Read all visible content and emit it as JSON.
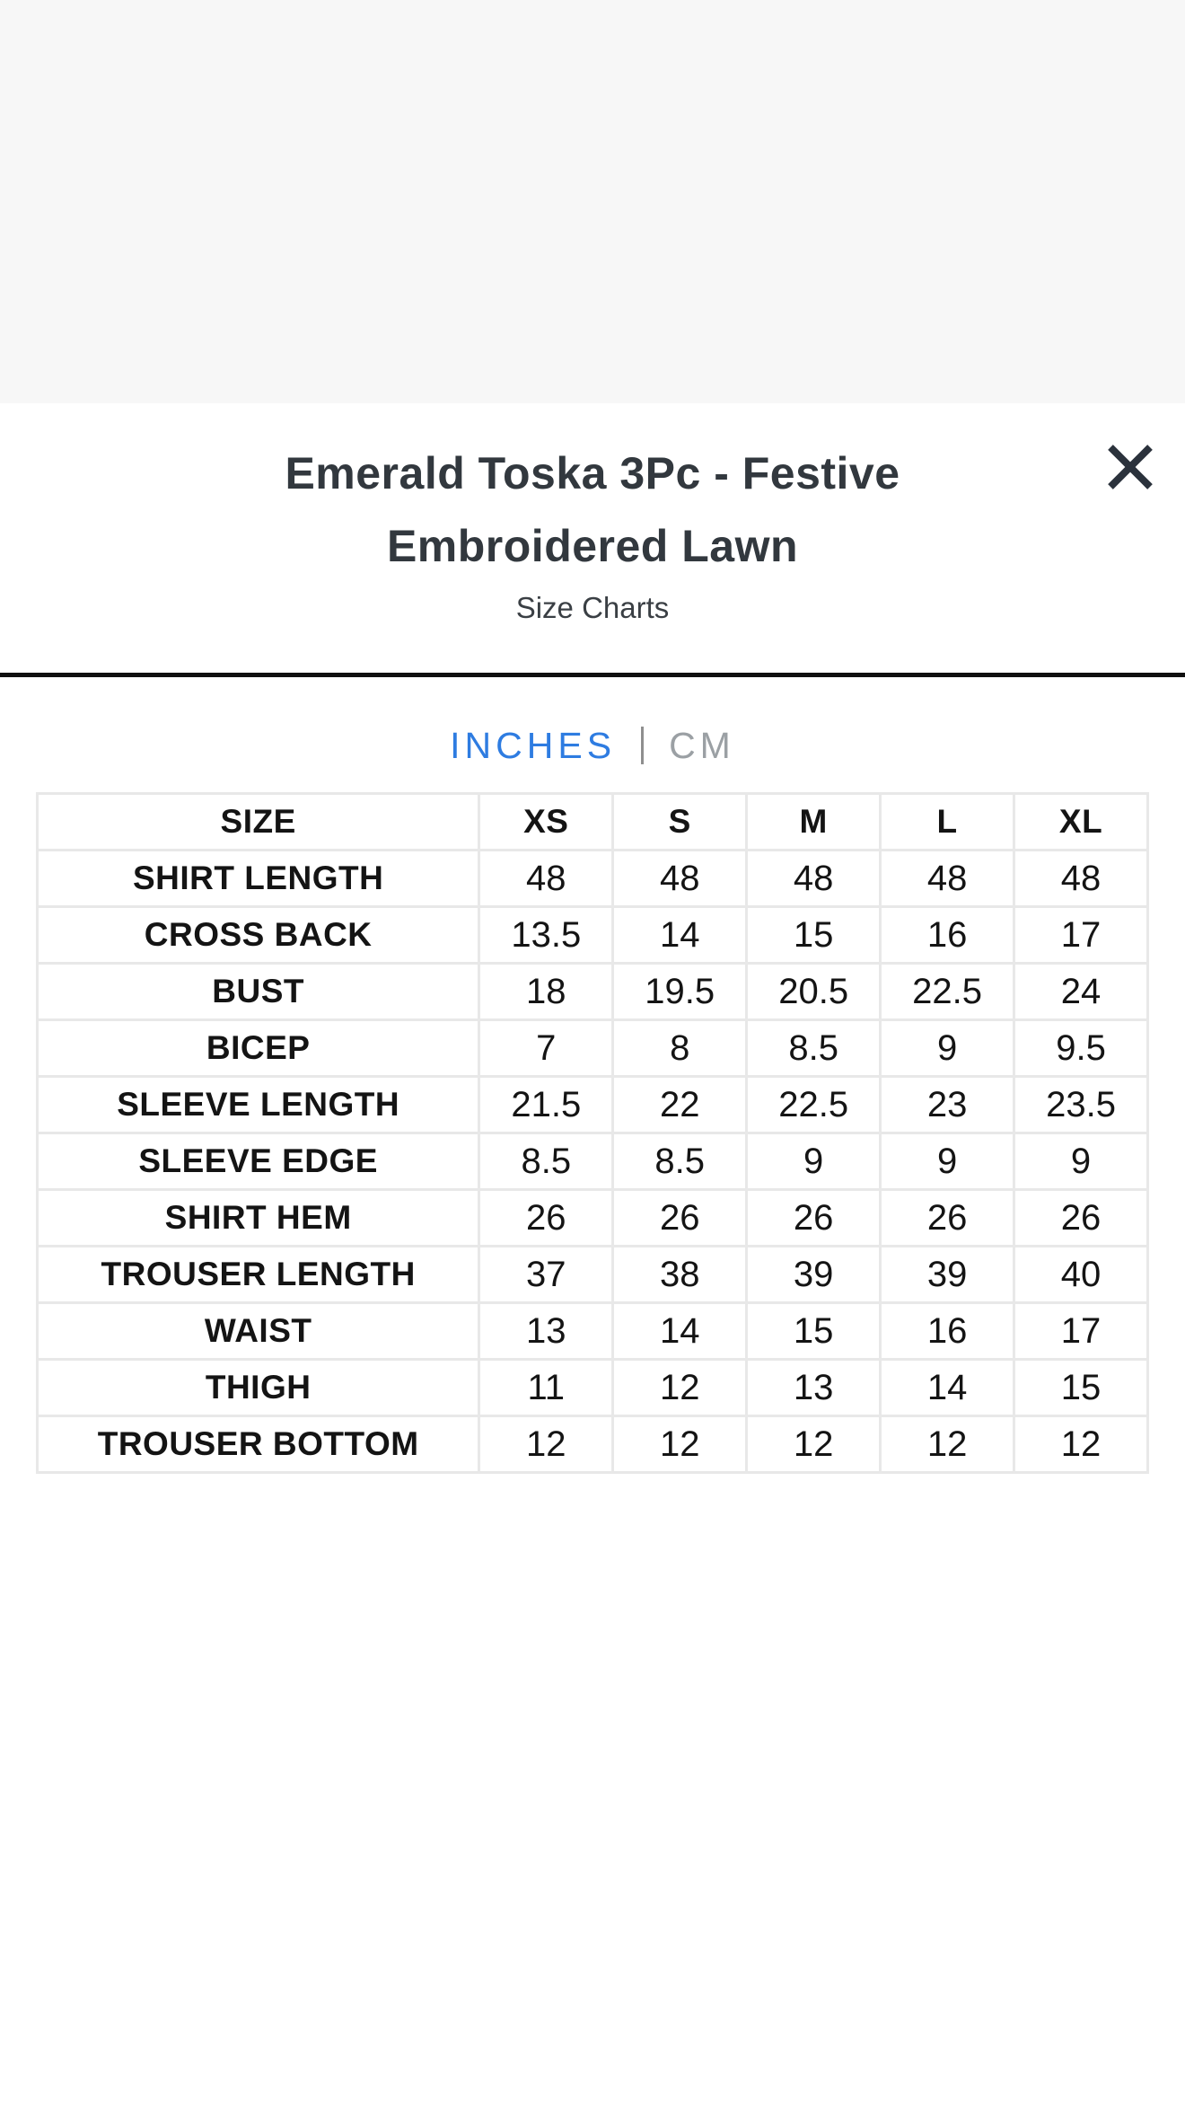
{
  "modal": {
    "title": "Emerald Toska 3Pc - Festive Embroidered Lawn",
    "subtitle": "Size Charts"
  },
  "tabs": {
    "inches_label": "INCHES",
    "cm_label": "CM",
    "active": "INCHES"
  },
  "colors": {
    "accent_blue": "#2E7CE1",
    "inactive_gray": "#9BA0A4",
    "text_dark": "#32383E",
    "icon_dark": "#2B323C",
    "table_border": "#E8E8E8",
    "backdrop": "#F7F7F7",
    "divider": "#101010"
  },
  "icons": {
    "close": "close-icon"
  },
  "size_chart": {
    "type": "table",
    "unit": "inches",
    "columns": [
      "SIZE",
      "XS",
      "S",
      "M",
      "L",
      "XL"
    ],
    "rows": [
      {
        "label": "SHIRT LENGTH",
        "values": [
          "48",
          "48",
          "48",
          "48",
          "48"
        ]
      },
      {
        "label": "CROSS BACK",
        "values": [
          "13.5",
          "14",
          "15",
          "16",
          "17"
        ]
      },
      {
        "label": "BUST",
        "values": [
          "18",
          "19.5",
          "20.5",
          "22.5",
          "24"
        ]
      },
      {
        "label": "BICEP",
        "values": [
          "7",
          "8",
          "8.5",
          "9",
          "9.5"
        ]
      },
      {
        "label": "SLEEVE LENGTH",
        "values": [
          "21.5",
          "22",
          "22.5",
          "23",
          "23.5"
        ]
      },
      {
        "label": "SLEEVE EDGE",
        "values": [
          "8.5",
          "8.5",
          "9",
          "9",
          "9"
        ]
      },
      {
        "label": "SHIRT HEM",
        "values": [
          "26",
          "26",
          "26",
          "26",
          "26"
        ]
      },
      {
        "label": "TROUSER LENGTH",
        "values": [
          "37",
          "38",
          "39",
          "39",
          "40"
        ]
      },
      {
        "label": "WAIST",
        "values": [
          "13",
          "14",
          "15",
          "16",
          "17"
        ]
      },
      {
        "label": "THIGH",
        "values": [
          "11",
          "12",
          "13",
          "14",
          "15"
        ]
      },
      {
        "label": "TROUSER BOTTOM",
        "values": [
          "12",
          "12",
          "12",
          "12",
          "12"
        ]
      }
    ]
  }
}
